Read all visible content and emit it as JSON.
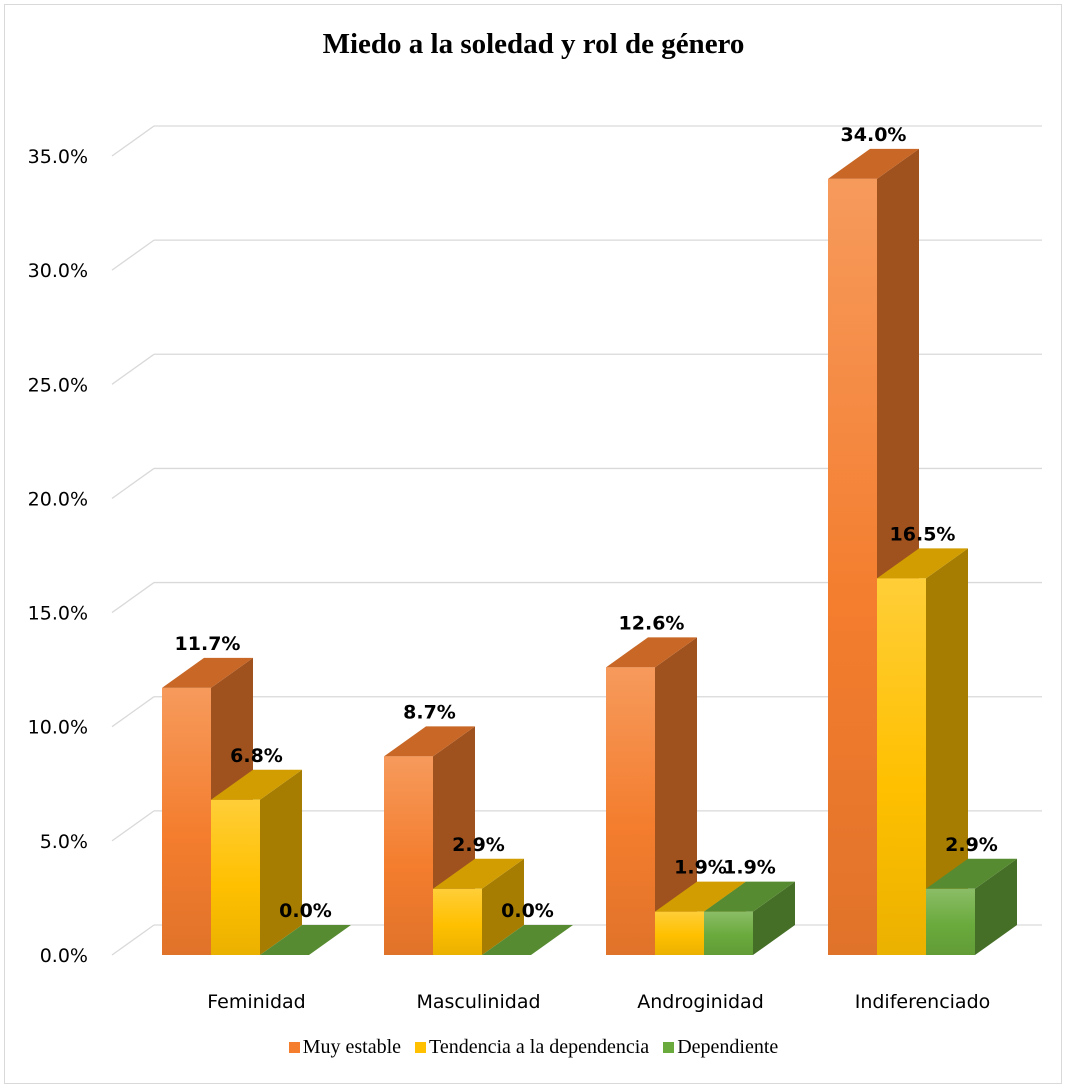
{
  "chart_data": {
    "type": "bar",
    "title": "Miedo a la soledad y rol de género",
    "xlabel": "",
    "ylabel": "",
    "categories": [
      "Feminidad",
      "Masculinidad",
      "Androginidad",
      "Indiferenciado"
    ],
    "series": [
      {
        "name": "Muy estable",
        "values": [
          11.7,
          8.7,
          12.6,
          34.0
        ],
        "labels": [
          "11.7%",
          "8.7%",
          "12.6%",
          "34.0%"
        ],
        "color": "#f47d2e"
      },
      {
        "name": "Tendencia a la dependencia",
        "values": [
          6.8,
          2.9,
          1.9,
          16.5
        ],
        "labels": [
          "6.8%",
          "2.9%",
          "1.9%",
          "16.5%"
        ],
        "color": "#ffc000"
      },
      {
        "name": "Dependiente",
        "values": [
          0.0,
          0.0,
          1.9,
          2.9
        ],
        "labels": [
          "0.0%",
          "0.0%",
          "1.9%",
          "2.9%"
        ],
        "color": "#6aaa3c"
      }
    ],
    "ylim": [
      0,
      35
    ],
    "yticks": [
      "0.0%",
      "5.0%",
      "10.0%",
      "15.0%",
      "20.0%",
      "25.0%",
      "30.0%",
      "35.0%"
    ],
    "grid": true,
    "three_d": true,
    "legend_position": "bottom"
  }
}
